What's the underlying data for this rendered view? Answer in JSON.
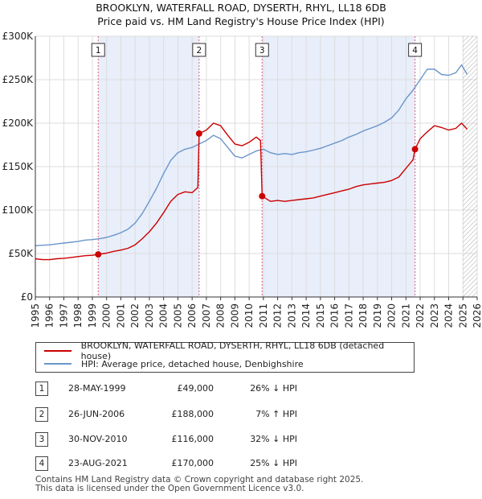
{
  "title_line1": "BROOKLYN, WATERFALL ROAD, DYSERTH, RHYL, LL18 6DB",
  "title_line2": "Price paid vs. HM Land Registry's House Price Index (HPI)",
  "colors": {
    "price": "#cc0000",
    "hpi": "#6a96cb",
    "shade": "#e8eefa",
    "grid": "#dddddd",
    "marker_line": "#e06070"
  },
  "chart_data": {
    "type": "line",
    "xlim": [
      1995,
      2026
    ],
    "ylim": [
      0,
      300000
    ],
    "yticks": [
      0,
      50000,
      100000,
      150000,
      200000,
      250000,
      300000
    ],
    "ytick_labels": [
      "£0",
      "£50K",
      "£100K",
      "£150K",
      "£200K",
      "£250K",
      "£300K"
    ],
    "xticks": [
      1995,
      1996,
      1997,
      1998,
      1999,
      2000,
      2001,
      2002,
      2003,
      2004,
      2005,
      2006,
      2007,
      2008,
      2009,
      2010,
      2011,
      2012,
      2013,
      2014,
      2015,
      2016,
      2017,
      2018,
      2019,
      2020,
      2021,
      2022,
      2023,
      2024,
      2025,
      2026
    ],
    "xtick_labels": [
      "1995",
      "1996",
      "1997",
      "1998",
      "1999",
      "2000",
      "2001",
      "2002",
      "2003",
      "2004",
      "2005",
      "2006",
      "2007",
      "2008",
      "2009",
      "2010",
      "2011",
      "2012",
      "2013",
      "2014",
      "2015",
      "2016",
      "2017",
      "2018",
      "2019",
      "2020",
      "2021",
      "2022",
      "2023",
      "2024",
      "2025",
      "2026"
    ],
    "shaded_ranges": [
      [
        1999.41,
        2006.49
      ],
      [
        2010.91,
        2021.64
      ]
    ],
    "hatched_from": 2025.0,
    "series": [
      {
        "name": "BROOKLYN, WATERFALL ROAD, DYSERTH, RHYL, LL18 6DB (detached house)",
        "color": "#cc0000",
        "points": [
          [
            1995.0,
            44000
          ],
          [
            1995.5,
            43000
          ],
          [
            1996.0,
            43000
          ],
          [
            1996.5,
            44000
          ],
          [
            1997.0,
            44500
          ],
          [
            1997.5,
            45500
          ],
          [
            1998.0,
            46500
          ],
          [
            1998.5,
            47500
          ],
          [
            1999.0,
            48000
          ],
          [
            1999.41,
            49000
          ],
          [
            2000.0,
            50500
          ],
          [
            2000.5,
            52500
          ],
          [
            2001.0,
            54000
          ],
          [
            2001.5,
            56000
          ],
          [
            2002.0,
            60000
          ],
          [
            2002.5,
            67000
          ],
          [
            2003.0,
            75000
          ],
          [
            2003.5,
            85000
          ],
          [
            2004.0,
            97000
          ],
          [
            2004.5,
            110000
          ],
          [
            2005.0,
            118000
          ],
          [
            2005.5,
            121000
          ],
          [
            2006.0,
            120000
          ],
          [
            2006.4,
            126000
          ],
          [
            2006.49,
            188000
          ],
          [
            2007.0,
            192000
          ],
          [
            2007.5,
            200000
          ],
          [
            2008.0,
            197000
          ],
          [
            2008.5,
            186000
          ],
          [
            2009.0,
            176000
          ],
          [
            2009.5,
            174000
          ],
          [
            2010.0,
            178000
          ],
          [
            2010.5,
            184000
          ],
          [
            2010.8,
            180000
          ],
          [
            2010.91,
            116000
          ],
          [
            2011.5,
            110000
          ],
          [
            2012.0,
            111000
          ],
          [
            2012.5,
            110000
          ],
          [
            2013.0,
            111000
          ],
          [
            2013.5,
            112000
          ],
          [
            2014.0,
            113000
          ],
          [
            2014.5,
            114000
          ],
          [
            2015.0,
            116000
          ],
          [
            2015.5,
            118000
          ],
          [
            2016.0,
            120000
          ],
          [
            2016.5,
            122000
          ],
          [
            2017.0,
            124000
          ],
          [
            2017.5,
            127000
          ],
          [
            2018.0,
            129000
          ],
          [
            2018.5,
            130000
          ],
          [
            2019.0,
            131000
          ],
          [
            2019.5,
            132000
          ],
          [
            2020.0,
            134000
          ],
          [
            2020.5,
            138000
          ],
          [
            2021.0,
            148000
          ],
          [
            2021.5,
            158000
          ],
          [
            2021.64,
            170000
          ],
          [
            2022.0,
            182000
          ],
          [
            2022.5,
            190000
          ],
          [
            2023.0,
            197000
          ],
          [
            2023.5,
            195000
          ],
          [
            2024.0,
            192000
          ],
          [
            2024.5,
            194000
          ],
          [
            2024.9,
            200000
          ],
          [
            2025.3,
            193000
          ]
        ]
      },
      {
        "name": "HPI: Average price, detached house, Denbighshire",
        "color": "#6a96cb",
        "points": [
          [
            1995.0,
            59000
          ],
          [
            1995.5,
            59500
          ],
          [
            1996.0,
            60000
          ],
          [
            1996.5,
            61000
          ],
          [
            1997.0,
            62000
          ],
          [
            1997.5,
            63000
          ],
          [
            1998.0,
            64000
          ],
          [
            1998.5,
            65500
          ],
          [
            1999.0,
            66000
          ],
          [
            1999.5,
            67000
          ],
          [
            2000.0,
            68500
          ],
          [
            2000.5,
            71000
          ],
          [
            2001.0,
            74000
          ],
          [
            2001.5,
            78000
          ],
          [
            2002.0,
            85000
          ],
          [
            2002.5,
            96000
          ],
          [
            2003.0,
            110000
          ],
          [
            2003.5,
            125000
          ],
          [
            2004.0,
            142000
          ],
          [
            2004.5,
            157000
          ],
          [
            2005.0,
            166000
          ],
          [
            2005.5,
            170000
          ],
          [
            2006.0,
            172000
          ],
          [
            2006.5,
            176000
          ],
          [
            2007.0,
            180000
          ],
          [
            2007.5,
            186000
          ],
          [
            2008.0,
            182000
          ],
          [
            2008.5,
            172000
          ],
          [
            2009.0,
            162000
          ],
          [
            2009.5,
            160000
          ],
          [
            2010.0,
            164000
          ],
          [
            2010.5,
            168000
          ],
          [
            2011.0,
            170000
          ],
          [
            2011.5,
            166000
          ],
          [
            2012.0,
            164000
          ],
          [
            2012.5,
            165000
          ],
          [
            2013.0,
            164000
          ],
          [
            2013.5,
            166000
          ],
          [
            2014.0,
            167000
          ],
          [
            2014.5,
            169000
          ],
          [
            2015.0,
            171000
          ],
          [
            2015.5,
            174000
          ],
          [
            2016.0,
            177000
          ],
          [
            2016.5,
            180000
          ],
          [
            2017.0,
            184000
          ],
          [
            2017.5,
            187000
          ],
          [
            2018.0,
            191000
          ],
          [
            2018.5,
            194000
          ],
          [
            2019.0,
            197000
          ],
          [
            2019.5,
            201000
          ],
          [
            2020.0,
            206000
          ],
          [
            2020.5,
            215000
          ],
          [
            2021.0,
            228000
          ],
          [
            2021.5,
            238000
          ],
          [
            2022.0,
            250000
          ],
          [
            2022.5,
            262000
          ],
          [
            2023.0,
            262000
          ],
          [
            2023.5,
            256000
          ],
          [
            2024.0,
            255000
          ],
          [
            2024.5,
            258000
          ],
          [
            2024.9,
            267000
          ],
          [
            2025.3,
            256000
          ]
        ]
      }
    ],
    "sale_markers": [
      {
        "id": "1",
        "x": 1999.41,
        "y": 49000
      },
      {
        "id": "2",
        "x": 2006.49,
        "y": 188000
      },
      {
        "id": "3",
        "x": 2010.91,
        "y": 116000
      },
      {
        "id": "4",
        "x": 2021.64,
        "y": 170000
      }
    ]
  },
  "legend": [
    {
      "label": "BROOKLYN, WATERFALL ROAD, DYSERTH, RHYL, LL18 6DB (detached house)",
      "color": "#cc0000"
    },
    {
      "label": "HPI: Average price, detached house, Denbighshire",
      "color": "#6a96cb"
    }
  ],
  "transactions": [
    {
      "num": "1",
      "date": "28-MAY-1999",
      "price": "£49,000",
      "hpi": "26% ↓ HPI"
    },
    {
      "num": "2",
      "date": "26-JUN-2006",
      "price": "£188,000",
      "hpi": "7% ↑ HPI"
    },
    {
      "num": "3",
      "date": "30-NOV-2010",
      "price": "£116,000",
      "hpi": "32% ↓ HPI"
    },
    {
      "num": "4",
      "date": "23-AUG-2021",
      "price": "£170,000",
      "hpi": "25% ↓ HPI"
    }
  ],
  "footer_line1": "Contains HM Land Registry data © Crown copyright and database right 2025.",
  "footer_line2": "This data is licensed under the Open Government Licence v3.0."
}
